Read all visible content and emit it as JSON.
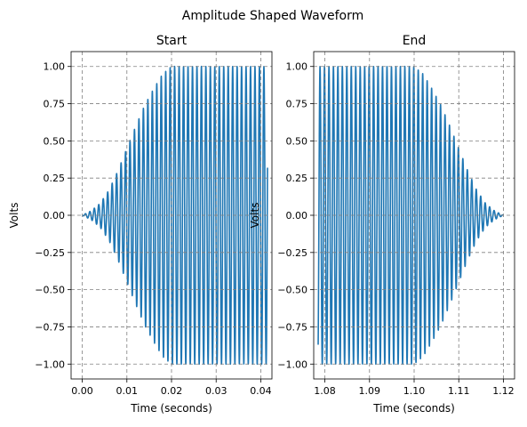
{
  "figure": {
    "suptitle": "Amplitude Shaped Waveform"
  },
  "colors": {
    "signal": "#1f77b4",
    "grid": "#808080",
    "background": "#ffffff"
  },
  "chart_data": [
    {
      "type": "line",
      "title": "Start",
      "xlabel": "Time (seconds)",
      "ylabel": "Volts",
      "xlim": [
        -0.0025,
        0.0425
      ],
      "ylim": [
        -1.1,
        1.1
      ],
      "grid": true,
      "x_ticks": [
        0.0,
        0.01,
        0.02,
        0.03,
        0.04
      ],
      "x_tick_labels": [
        "0.00",
        "0.01",
        "0.02",
        "0.03",
        "0.04"
      ],
      "y_ticks": [
        -1.0,
        -0.75,
        -0.5,
        -0.25,
        0.0,
        0.25,
        0.5,
        0.75,
        1.0
      ],
      "y_tick_labels": [
        "−1.00",
        "−0.75",
        "−0.50",
        "−0.25",
        "0.00",
        "0.25",
        "0.50",
        "0.75",
        "1.00"
      ],
      "series": [
        {
          "signal": "sine",
          "frequency_hz": 1000,
          "x_range": [
            0.0,
            0.0415
          ],
          "end_value": 0.32,
          "envelope_x": [
            0.0,
            0.002,
            0.004,
            0.006,
            0.008,
            0.01,
            0.012,
            0.014,
            0.016,
            0.018,
            0.02,
            0.0415
          ],
          "envelope_y": [
            0.0,
            0.03,
            0.08,
            0.17,
            0.3,
            0.45,
            0.6,
            0.74,
            0.85,
            0.95,
            1.0,
            1.0
          ]
        }
      ]
    },
    {
      "type": "line",
      "title": "End",
      "xlabel": "Time (seconds)",
      "ylabel": "Volts",
      "xlim": [
        1.0775,
        1.1225
      ],
      "ylim": [
        -1.1,
        1.1
      ],
      "grid": true,
      "x_ticks": [
        1.08,
        1.09,
        1.1,
        1.11,
        1.12
      ],
      "x_tick_labels": [
        "1.08",
        "1.09",
        "1.10",
        "1.11",
        "1.12"
      ],
      "y_ticks": [
        -1.0,
        -0.75,
        -0.5,
        -0.25,
        0.0,
        0.25,
        0.5,
        0.75,
        1.0
      ],
      "y_tick_labels": [
        "−1.00",
        "−0.75",
        "−0.50",
        "−0.25",
        "0.00",
        "0.25",
        "0.50",
        "0.75",
        "1.00"
      ],
      "series": [
        {
          "signal": "sine",
          "frequency_hz": 1000,
          "x_range": [
            1.0785,
            1.12
          ],
          "start_value": -0.87,
          "envelope_x": [
            1.0785,
            1.1,
            1.102,
            1.104,
            1.106,
            1.108,
            1.11,
            1.112,
            1.114,
            1.116,
            1.118,
            1.12
          ],
          "envelope_y": [
            1.0,
            1.0,
            0.95,
            0.85,
            0.74,
            0.6,
            0.45,
            0.3,
            0.17,
            0.08,
            0.03,
            0.0
          ]
        }
      ]
    }
  ]
}
